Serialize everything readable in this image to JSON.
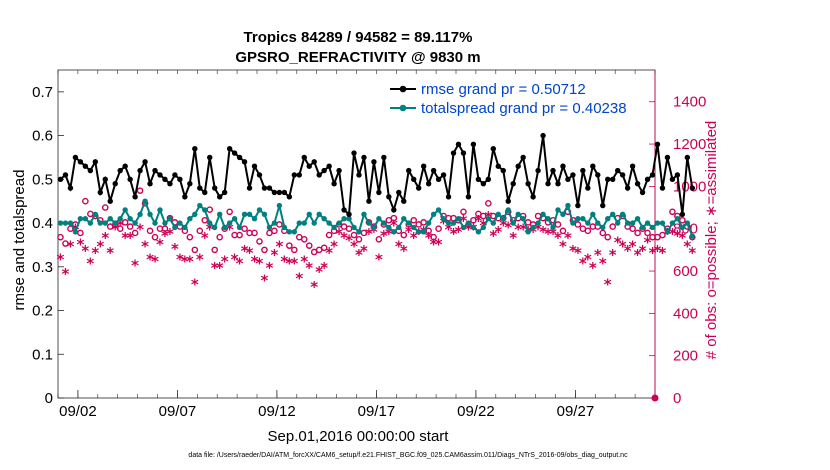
{
  "chart_data": {
    "type": "line",
    "title_line1": "Tropics 84289 / 94582 = 89.117%",
    "title_line2": "GPSRO_REFRACTIVITY @ 9830 m",
    "xlabel": "Sep.01,2016 00:00:00 start",
    "ylabel_left": "rmse and totalspread",
    "ylabel_right": "# of obs: o=possible; ∗=assimilated",
    "ylim_left": [
      0,
      0.75
    ],
    "ylim_right": [
      0,
      1550
    ],
    "xlim_days": [
      1.0,
      31.0
    ],
    "left_ticks": [
      "0",
      "0.1",
      "0.2",
      "0.3",
      "0.4",
      "0.5",
      "0.6",
      "0.7"
    ],
    "right_ticks": [
      "0",
      "200",
      "400",
      "600",
      "800",
      "1000",
      "1200",
      "1400"
    ],
    "x_ticks": [
      {
        "label": "09/02",
        "day": 2
      },
      {
        "label": "09/07",
        "day": 7
      },
      {
        "label": "09/12",
        "day": 12
      },
      {
        "label": "09/17",
        "day": 17
      },
      {
        "label": "09/22",
        "day": 22
      },
      {
        "label": "09/27",
        "day": 27
      }
    ],
    "legend": [
      {
        "label": "rmse grand pr = 0.50712",
        "color": "#000000"
      },
      {
        "label": "totalspread grand pr = 0.40238",
        "color": "#008080"
      }
    ],
    "colors": {
      "rmse": "#000000",
      "spread": "#008080",
      "obs": "#cc0055"
    },
    "series": [
      {
        "name": "rmse",
        "values": [
          0.5,
          0.51,
          0.48,
          0.55,
          0.54,
          0.53,
          0.52,
          0.54,
          0.47,
          0.5,
          0.45,
          0.49,
          0.52,
          0.53,
          0.5,
          0.46,
          0.52,
          0.54,
          0.49,
          0.52,
          0.51,
          0.5,
          0.49,
          0.51,
          0.5,
          0.46,
          0.49,
          0.57,
          0.48,
          0.47,
          0.55,
          0.48,
          0.46,
          0.47,
          0.57,
          0.56,
          0.55,
          0.54,
          0.48,
          0.53,
          0.51,
          0.48,
          0.48,
          0.47,
          0.47,
          0.47,
          0.46,
          0.51,
          0.51,
          0.55,
          0.53,
          0.54,
          0.51,
          0.52,
          0.53,
          0.49,
          0.52,
          0.43,
          0.42,
          0.56,
          0.51,
          0.55,
          0.45,
          0.54,
          0.47,
          0.55,
          0.46,
          0.43,
          0.47,
          0.45,
          0.52,
          0.5,
          0.48,
          0.53,
          0.49,
          0.52,
          0.5,
          0.51,
          0.46,
          0.56,
          0.58,
          0.56,
          0.46,
          0.58,
          0.5,
          0.49,
          0.5,
          0.57,
          0.53,
          0.52,
          0.45,
          0.49,
          0.53,
          0.55,
          0.49,
          0.46,
          0.52,
          0.6,
          0.49,
          0.52,
          0.49,
          0.53,
          0.5,
          0.51,
          0.44,
          0.52,
          0.48,
          0.53,
          0.51,
          0.44,
          0.5,
          0.5,
          0.52,
          0.51,
          0.48,
          0.53,
          0.49,
          0.47,
          0.5,
          0.51,
          0.58,
          0.48,
          0.55,
          0.5,
          0.51,
          0.42,
          0.55,
          0.48
        ]
      },
      {
        "name": "totalspread",
        "values": [
          0.4,
          0.4,
          0.4,
          0.38,
          0.41,
          0.41,
          0.4,
          0.42,
          0.4,
          0.4,
          0.41,
          0.4,
          0.41,
          0.43,
          0.41,
          0.4,
          0.42,
          0.45,
          0.42,
          0.4,
          0.43,
          0.4,
          0.41,
          0.39,
          0.4,
          0.39,
          0.41,
          0.42,
          0.44,
          0.43,
          0.4,
          0.39,
          0.42,
          0.39,
          0.4,
          0.41,
          0.39,
          0.42,
          0.42,
          0.41,
          0.43,
          0.42,
          0.39,
          0.4,
          0.44,
          0.39,
          0.38,
          0.38,
          0.4,
          0.4,
          0.42,
          0.4,
          0.42,
          0.41,
          0.4,
          0.39,
          0.4,
          0.41,
          0.41,
          0.39,
          0.38,
          0.42,
          0.4,
          0.39,
          0.41,
          0.4,
          0.39,
          0.38,
          0.39,
          0.41,
          0.4,
          0.39,
          0.38,
          0.38,
          0.4,
          0.42,
          0.43,
          0.41,
          0.4,
          0.4,
          0.41,
          0.39,
          0.4,
          0.39,
          0.38,
          0.39,
          0.41,
          0.4,
          0.42,
          0.41,
          0.43,
          0.4,
          0.42,
          0.41,
          0.38,
          0.39,
          0.4,
          0.42,
          0.41,
          0.39,
          0.43,
          0.42,
          0.44,
          0.4,
          0.41,
          0.41,
          0.4,
          0.42,
          0.4,
          0.39,
          0.41,
          0.42,
          0.4,
          0.42,
          0.4,
          0.4,
          0.41,
          0.39,
          0.4,
          0.39,
          0.4,
          0.4,
          0.38,
          0.4,
          0.41,
          0.39,
          0.4,
          0.37
        ]
      },
      {
        "name": "obs_possible",
        "values": [
          760,
          730,
          800,
          820,
          780,
          930,
          870,
          860,
          840,
          900,
          810,
          820,
          800,
          830,
          810,
          780,
          980,
          920,
          790,
          760,
          800,
          800,
          850,
          830,
          810,
          790,
          760,
          700,
          790,
          840,
          890,
          700,
          760,
          800,
          880,
          770,
          770,
          800,
          780,
          780,
          740,
          700,
          780,
          790,
          820,
          790,
          720,
          700,
          760,
          750,
          720,
          690,
          700,
          710,
          770,
          790,
          820,
          810,
          800,
          770,
          750,
          780,
          830,
          810,
          750,
          820,
          840,
          850,
          790,
          770,
          820,
          840,
          820,
          830,
          790,
          760,
          800,
          860,
          850,
          850,
          840,
          880,
          820,
          840,
          870,
          860,
          920,
          860,
          850,
          850,
          880,
          840,
          850,
          860,
          830,
          820,
          860,
          850,
          830,
          840,
          820,
          790,
          880,
          840,
          820,
          800,
          790,
          810,
          810,
          780,
          760,
          810,
          850,
          860,
          810,
          800,
          780,
          800,
          780,
          760,
          760,
          770,
          800,
          880,
          860,
          840,
          810,
          760
        ]
      },
      {
        "name": "obs_assimilated",
        "values": [
          660,
          590,
          720,
          800,
          730,
          700,
          640,
          690,
          720,
          760,
          690,
          800,
          820,
          760,
          760,
          630,
          800,
          720,
          660,
          650,
          730,
          770,
          780,
          710,
          660,
          650,
          650,
          540,
          660,
          760,
          800,
          620,
          620,
          650,
          800,
          660,
          640,
          700,
          690,
          650,
          640,
          560,
          620,
          680,
          720,
          650,
          640,
          640,
          570,
          650,
          620,
          530,
          600,
          620,
          690,
          720,
          780,
          760,
          750,
          720,
          680,
          700,
          780,
          790,
          660,
          770,
          780,
          820,
          720,
          700,
          790,
          760,
          780,
          790,
          760,
          730,
          730,
          830,
          800,
          780,
          790,
          840,
          800,
          800,
          840,
          820,
          860,
          770,
          790,
          820,
          810,
          760,
          800,
          800,
          790,
          790,
          800,
          790,
          780,
          780,
          760,
          720,
          760,
          700,
          690,
          640,
          660,
          620,
          680,
          640,
          540,
          680,
          740,
          720,
          700,
          720,
          680,
          700,
          740,
          690,
          700,
          690,
          780,
          780,
          770,
          760,
          720,
          690
        ]
      }
    ]
  },
  "footnote": "data file: /Users/raeder/DAI/ATM_forcXX/CAM6_setup/f.e21.FHIST_BGC.f09_025.CAM6assim.011/Diags_NTrS_2016-09/obs_diag_output.nc",
  "extra_marker_value": 0
}
